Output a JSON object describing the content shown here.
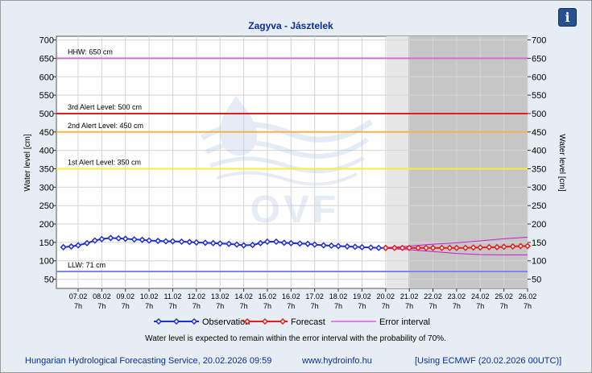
{
  "chart_data": {
    "type": "line",
    "title": "Zagyva - Jásztelek",
    "ylabel": "Water level [cm]",
    "ylabel_right": "Water level [cm]",
    "ylim": [
      25,
      710
    ],
    "yticks": [
      50,
      100,
      150,
      200,
      250,
      300,
      350,
      400,
      450,
      500,
      550,
      600,
      650,
      700
    ],
    "x_tick_dates": [
      "07.02",
      "08.02",
      "09.02",
      "10.02",
      "11.02",
      "12.02",
      "13.02",
      "14.02",
      "15.02",
      "16.02",
      "17.02",
      "18.02",
      "19.02",
      "20.02",
      "21.02",
      "22.02",
      "23.02",
      "24.02",
      "25.02",
      "26.02"
    ],
    "x_tick_time": "7h",
    "reference_lines": [
      {
        "label": "HHW: 650 cm",
        "value": 650,
        "color": "#d96ad8"
      },
      {
        "label": "3rd Alert Level: 500 cm",
        "value": 500,
        "color": "#dd1f1f"
      },
      {
        "label": "2nd Alert Level: 450 cm",
        "value": 450,
        "color": "#f2b44a"
      },
      {
        "label": "1st Alert Level: 350 cm",
        "value": 350,
        "color": "#f4ef3a"
      },
      {
        "label": "LLW: 71 cm",
        "value": 71,
        "color": "#7f86f4"
      }
    ],
    "series": [
      {
        "name": "Observation",
        "color": "#1f2fd6",
        "x": [
          "06.02 16h",
          "07.02 0h",
          "07.02 7h",
          "07.02 16h",
          "08.02 0h",
          "08.02 7h",
          "08.02 16h",
          "09.02 0h",
          "09.02 7h",
          "09.02 16h",
          "10.02 0h",
          "10.02 7h",
          "10.02 16h",
          "11.02 0h",
          "11.02 7h",
          "11.02 16h",
          "12.02 0h",
          "12.02 7h",
          "12.02 16h",
          "13.02 0h",
          "13.02 7h",
          "13.02 16h",
          "14.02 0h",
          "14.02 7h",
          "14.02 16h",
          "15.02 0h",
          "15.02 7h",
          "15.02 16h",
          "16.02 0h",
          "16.02 7h",
          "16.02 16h",
          "17.02 0h",
          "17.02 7h",
          "17.02 16h",
          "18.02 0h",
          "18.02 7h",
          "18.02 16h",
          "19.02 0h",
          "19.02 7h",
          "19.02 16h",
          "20.02 0h",
          "20.02 7h"
        ],
        "values": [
          137,
          139,
          142,
          148,
          155,
          159,
          162,
          161,
          160,
          158,
          157,
          155,
          154,
          153,
          153,
          152,
          151,
          150,
          149,
          148,
          147,
          146,
          144,
          142,
          143,
          148,
          152,
          152,
          149,
          148,
          147,
          146,
          144,
          142,
          141,
          140,
          139,
          138,
          137,
          136,
          135,
          135
        ]
      },
      {
        "name": "Forecast",
        "color": "#e01e1e",
        "x": [
          "20.02 7h",
          "20.02 16h",
          "21.02 0h",
          "21.02 7h",
          "21.02 16h",
          "22.02 0h",
          "22.02 7h",
          "22.02 16h",
          "23.02 0h",
          "23.02 7h",
          "23.02 16h",
          "24.02 0h",
          "24.02 7h",
          "24.02 16h",
          "25.02 0h",
          "25.02 7h",
          "25.02 16h",
          "26.02 0h",
          "26.02 7h"
        ],
        "values": [
          135,
          135,
          135,
          135,
          135,
          135,
          135,
          135,
          135,
          135,
          135,
          136,
          136,
          137,
          137,
          138,
          139,
          140,
          140
        ]
      },
      {
        "name": "Error interval",
        "color": "#c81bd6",
        "x": [
          "20.02 7h",
          "21.02 7h",
          "22.02 7h",
          "23.02 7h",
          "24.02 7h",
          "25.02 7h",
          "26.02 7h"
        ],
        "upper": [
          136,
          140,
          145,
          149,
          154,
          160,
          164
        ],
        "lower": [
          134,
          130,
          125,
          120,
          117,
          116,
          116
        ]
      }
    ]
  },
  "notes": {
    "probability": "Water level is expected to remain within the error interval with the probability of 70%."
  },
  "watermark": {
    "text": "OVF"
  },
  "footer": {
    "service": "Hungarian Hydrological Forecasting Service, 20.02.2026 09:59",
    "url": "www.hydroinfo.hu",
    "model": "[Using ECMWF (20.02.2026  00UTC)]"
  },
  "info_button": {
    "label": "i",
    "icon": "info-icon"
  }
}
